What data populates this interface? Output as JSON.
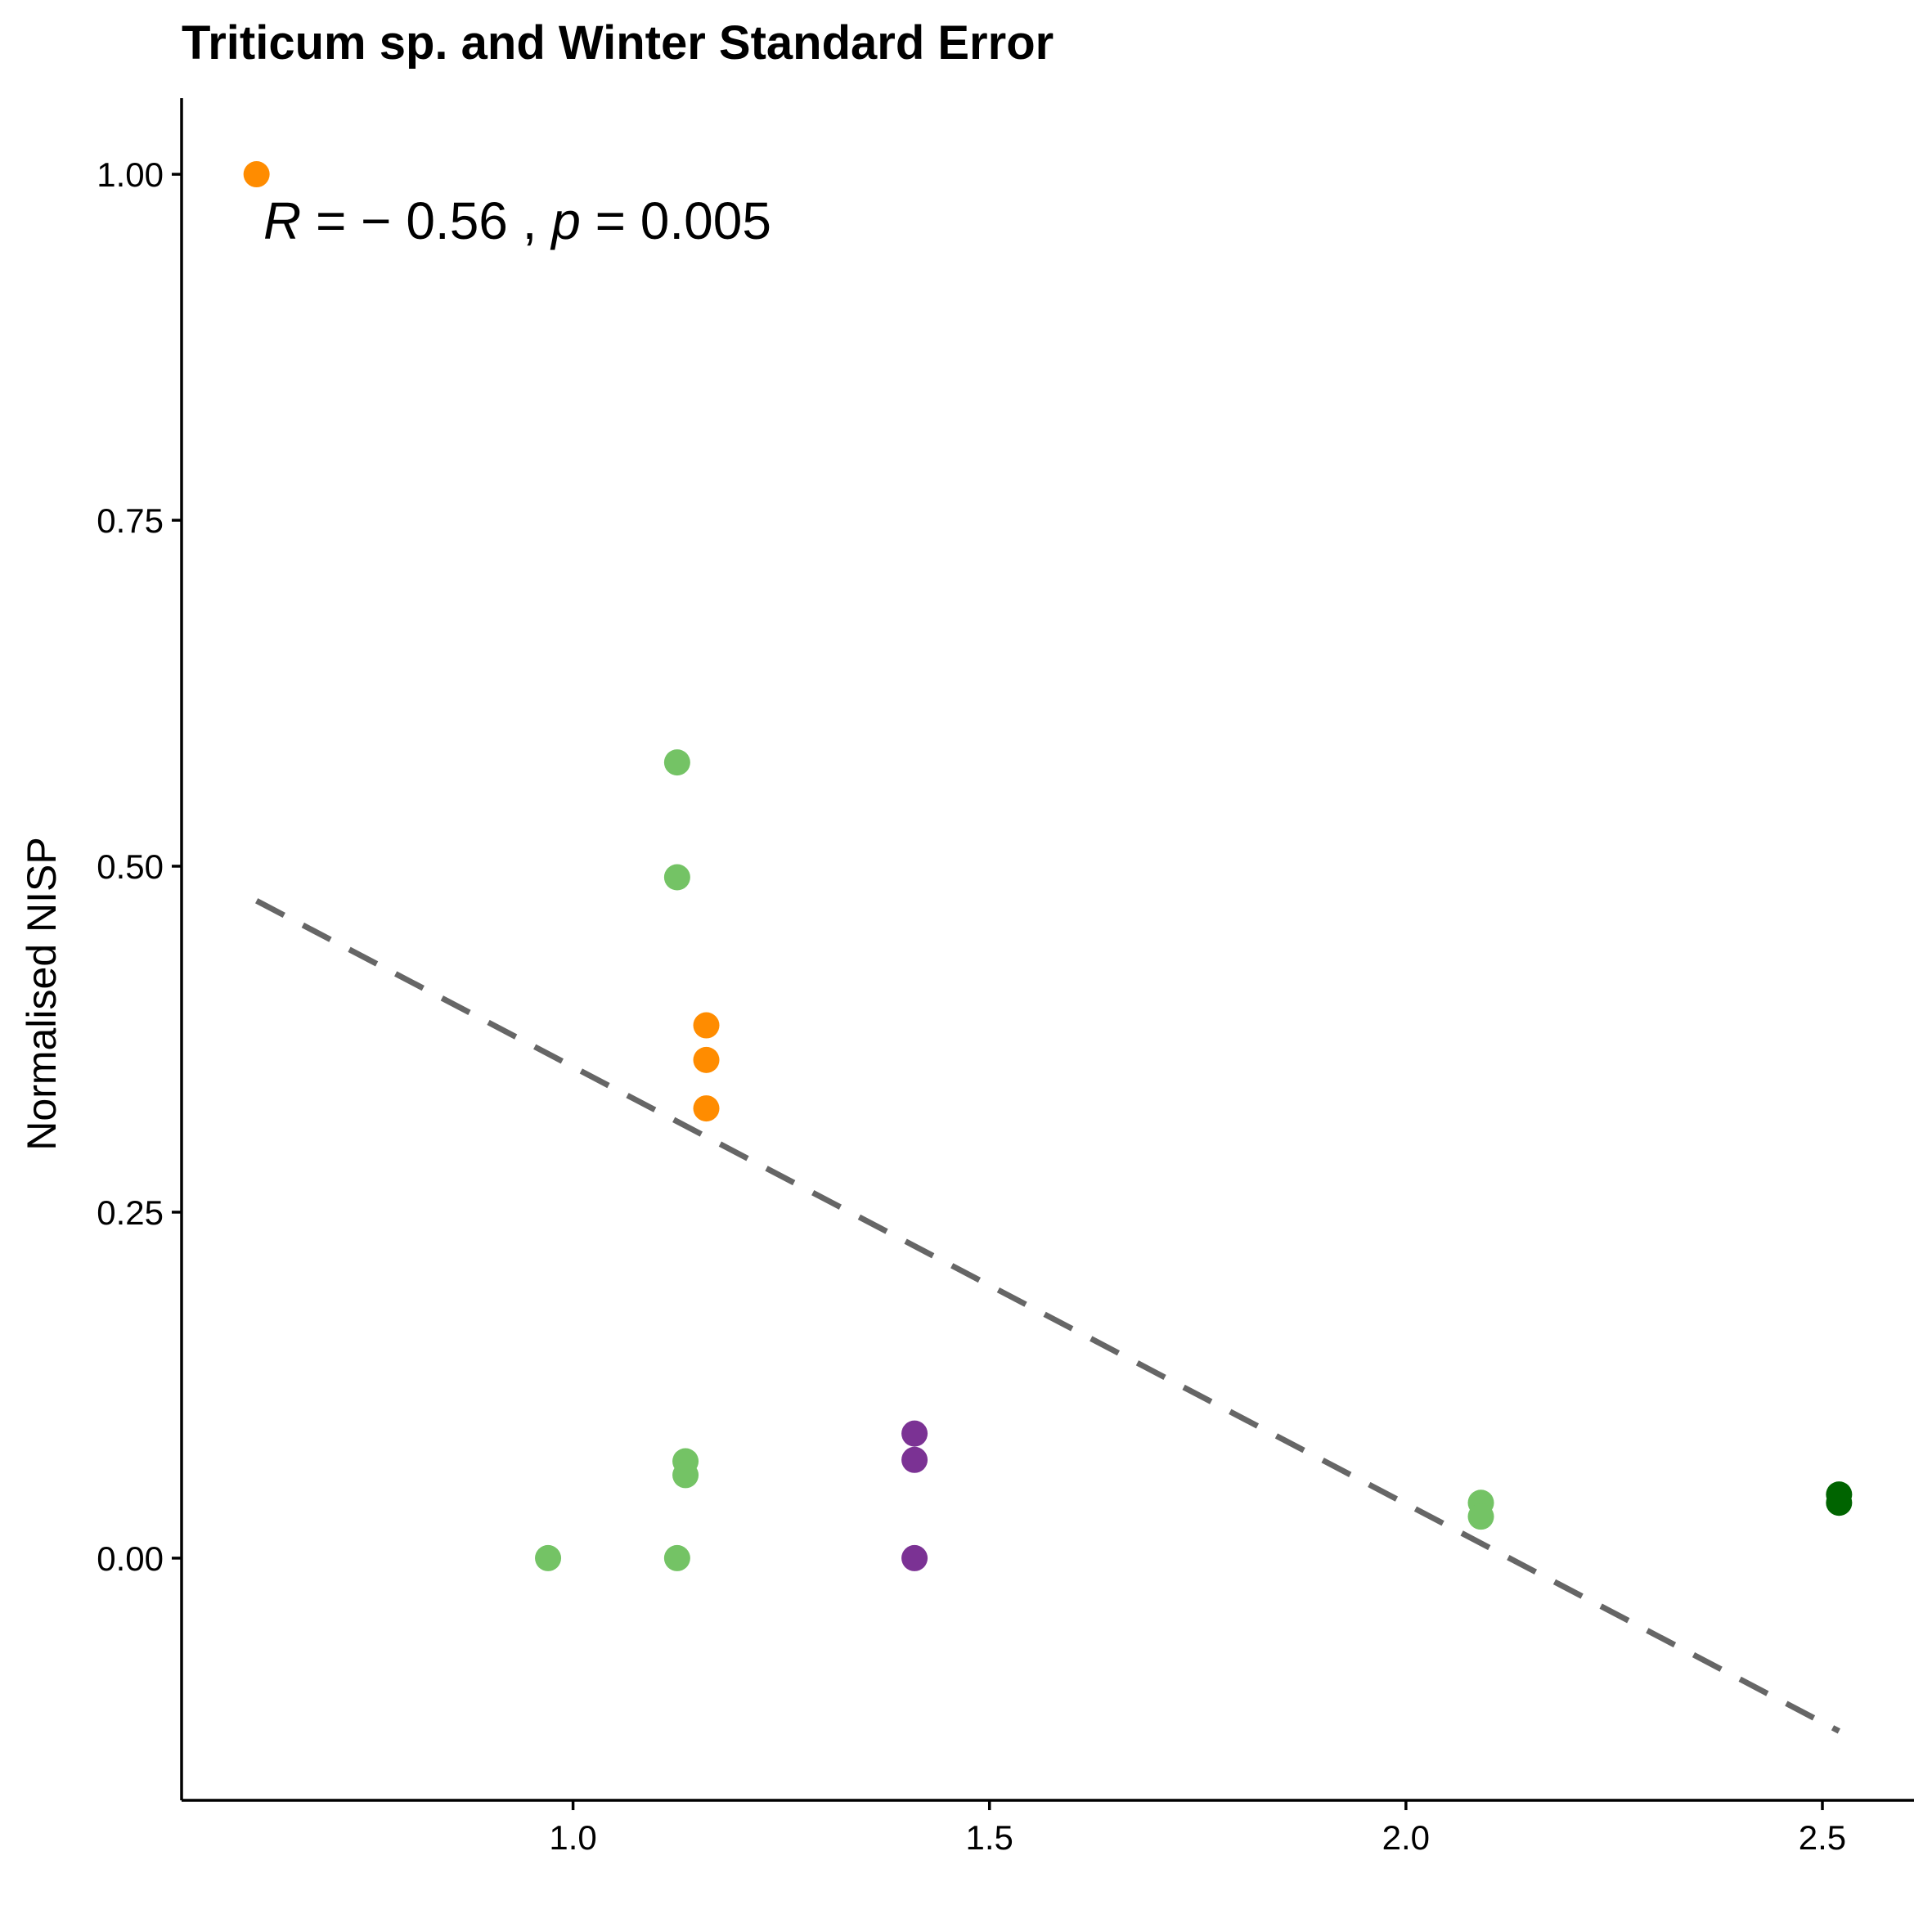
{
  "chart_data": {
    "type": "scatter",
    "title": "Triticum sp. and Winter Standard Error",
    "xlabel": "",
    "ylabel": "Normalised NISP",
    "xlim": [
      0.53,
      2.61
    ],
    "ylim": [
      -0.175,
      1.055
    ],
    "x_ticks": [
      1.0,
      1.5,
      2.0,
      2.5
    ],
    "x_tick_labels": [
      "1.0",
      "1.5",
      "2.0",
      "2.5"
    ],
    "y_ticks": [
      0.0,
      0.25,
      0.5,
      0.75,
      1.0
    ],
    "y_tick_labels": [
      "0.00",
      "0.25",
      "0.50",
      "0.75",
      "1.00"
    ],
    "grid": false,
    "annotation": {
      "r_symbol": "R",
      "r_value": " = − 0.56 , ",
      "p_symbol": "p",
      "p_value": " = 0.005"
    },
    "regression_line": {
      "style": "dashed",
      "color": "#666666",
      "x": [
        0.62,
        2.52
      ],
      "y": [
        0.475,
        -0.125
      ]
    },
    "colors": {
      "orange": "#FF8C00",
      "light_green": "#74C365",
      "purple": "#7B3294",
      "dark_green": "#006400"
    },
    "series": [
      {
        "color": "#FF8C00",
        "points": [
          {
            "x": 0.62,
            "y": 1.0
          },
          {
            "x": 1.16,
            "y": 0.385
          },
          {
            "x": 1.16,
            "y": 0.36
          },
          {
            "x": 1.16,
            "y": 0.325
          }
        ]
      },
      {
        "color": "#74C365",
        "points": [
          {
            "x": 0.97,
            "y": 0.0
          },
          {
            "x": 1.125,
            "y": 0.575
          },
          {
            "x": 1.125,
            "y": 0.492
          },
          {
            "x": 1.125,
            "y": 0.0
          },
          {
            "x": 1.135,
            "y": 0.07
          },
          {
            "x": 1.135,
            "y": 0.06
          },
          {
            "x": 2.09,
            "y": 0.04
          },
          {
            "x": 2.09,
            "y": 0.03
          }
        ]
      },
      {
        "color": "#7B3294",
        "points": [
          {
            "x": 1.41,
            "y": 0.09
          },
          {
            "x": 1.41,
            "y": 0.071
          },
          {
            "x": 1.41,
            "y": 0.0
          }
        ]
      },
      {
        "color": "#006400",
        "points": [
          {
            "x": 2.52,
            "y": 0.046
          },
          {
            "x": 2.52,
            "y": 0.04
          }
        ]
      }
    ]
  }
}
